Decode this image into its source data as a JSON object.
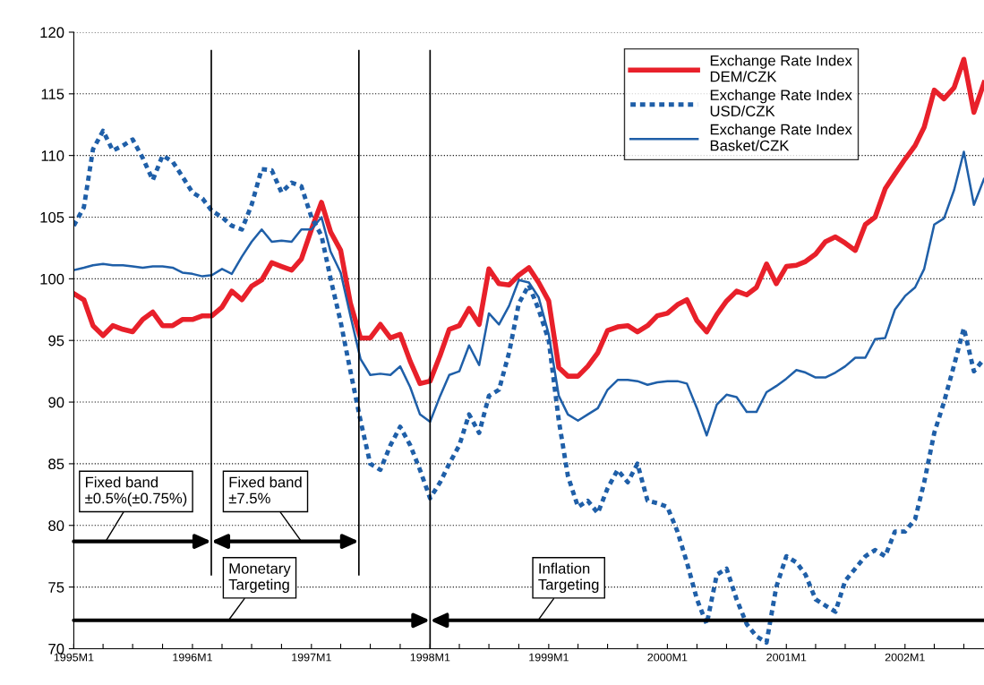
{
  "chart_data": {
    "type": "line",
    "x": [
      "1995-01",
      "1995-02",
      "1995-03",
      "1995-04",
      "1995-05",
      "1995-06",
      "1995-07",
      "1995-08",
      "1995-09",
      "1995-10",
      "1995-11",
      "1995-12",
      "1996-01",
      "1996-02",
      "1996-03",
      "1996-04",
      "1996-05",
      "1996-06",
      "1996-07",
      "1996-08",
      "1996-09",
      "1996-10",
      "1996-11",
      "1996-12",
      "1997-01",
      "1997-02",
      "1997-03",
      "1997-04",
      "1997-05",
      "1997-06",
      "1997-07",
      "1997-08",
      "1997-09",
      "1997-10",
      "1997-11",
      "1997-12",
      "1998-01",
      "1998-02",
      "1998-03",
      "1998-04",
      "1998-05",
      "1998-06",
      "1998-07",
      "1998-08",
      "1998-09",
      "1998-10",
      "1998-11",
      "1998-12",
      "1999-01",
      "1999-02",
      "1999-03",
      "1999-04",
      "1999-05",
      "1999-06",
      "1999-07",
      "1999-08",
      "1999-09",
      "1999-10",
      "1999-11",
      "1999-12",
      "2000-01",
      "2000-02",
      "2000-03",
      "2000-04",
      "2000-05",
      "2000-06",
      "2000-07",
      "2000-08",
      "2000-09",
      "2000-10",
      "2000-11",
      "2000-12",
      "2001-01",
      "2001-02",
      "2001-03",
      "2001-04",
      "2001-05",
      "2001-06",
      "2001-07",
      "2001-08",
      "2001-09",
      "2001-10",
      "2001-11",
      "2001-12",
      "2002-01",
      "2002-02",
      "2002-03",
      "2002-04",
      "2002-05",
      "2002-06",
      "2002-07",
      "2002-08",
      "2002-09"
    ],
    "series": [
      {
        "name": "Exchange Rate Index\nDEM/CZK",
        "color": "#e8202a",
        "line_style": "solid",
        "values": [
          98.8,
          98.3,
          96.2,
          95.4,
          96.2,
          95.9,
          95.7,
          96.7,
          97.3,
          96.2,
          96.2,
          96.7,
          96.7,
          97.0,
          97.0,
          97.7,
          99.0,
          98.3,
          99.4,
          99.9,
          101.3,
          101.0,
          100.7,
          101.6,
          104.0,
          106.2,
          103.8,
          102.3,
          98.0,
          95.2,
          95.2,
          96.3,
          95.2,
          95.5,
          93.3,
          91.5,
          91.7,
          93.8,
          95.9,
          96.2,
          97.6,
          96.3,
          100.8,
          99.6,
          99.5,
          100.3,
          100.9,
          99.7,
          98.2,
          92.8,
          92.1,
          92.1,
          92.9,
          94.0,
          95.8,
          96.1,
          96.2,
          95.7,
          96.2,
          97.0,
          97.2,
          97.9,
          98.3,
          96.6,
          95.7,
          97.1,
          98.2,
          99.0,
          98.7,
          99.3,
          101.2,
          99.6,
          101.0,
          101.1,
          101.4,
          102.0,
          103.0,
          103.4,
          102.9,
          102.3,
          104.4,
          105.0,
          107.3,
          108.5,
          109.7,
          110.8,
          112.3,
          115.3,
          114.6,
          115.5,
          117.8,
          113.5,
          115.9
        ]
      },
      {
        "name": "Exchange Rate Index\nUSD/CZK",
        "color": "#1f5fa8",
        "line_style": "dotted",
        "values": [
          104.3,
          105.8,
          110.5,
          112.0,
          110.4,
          110.8,
          111.3,
          109.8,
          108.0,
          110.0,
          109.5,
          108.3,
          107.0,
          106.5,
          105.5,
          105.0,
          104.3,
          104.0,
          106.0,
          108.9,
          108.8,
          107.0,
          107.8,
          107.5,
          105.0,
          103.5,
          100.0,
          96.5,
          92.5,
          88.5,
          85.0,
          84.5,
          86.5,
          88.0,
          86.5,
          84.5,
          82.2,
          83.5,
          85.0,
          86.5,
          89.0,
          87.5,
          90.5,
          91.0,
          94.0,
          98.0,
          99.5,
          97.5,
          95.0,
          88.5,
          84.0,
          81.5,
          82.0,
          81.0,
          83.0,
          84.5,
          83.5,
          85.0,
          82.0,
          81.8,
          81.5,
          79.5,
          77.0,
          74.0,
          72.0,
          76.0,
          76.5,
          74.0,
          72.0,
          71.0,
          70.5,
          75.0,
          77.5,
          77.0,
          76.0,
          74.0,
          73.5,
          73.0,
          75.5,
          76.5,
          77.5,
          78.0,
          77.5,
          79.5,
          79.5,
          80.5,
          83.5,
          87.5,
          90.0,
          93.0,
          96.0,
          92.5,
          93.5
        ]
      },
      {
        "name": "Exchange Rate Index\nBasket/CZK",
        "color": "#1f5fa8",
        "line_style": "solid",
        "values": [
          100.7,
          100.9,
          101.1,
          101.2,
          101.1,
          101.1,
          101.0,
          100.9,
          101.0,
          101.0,
          100.9,
          100.5,
          100.4,
          100.2,
          100.3,
          100.8,
          100.4,
          101.8,
          103.0,
          104.0,
          103.0,
          103.1,
          103.0,
          104.0,
          104.0,
          105.0,
          102.2,
          100.5,
          97.0,
          93.5,
          92.2,
          92.3,
          92.2,
          92.9,
          91.2,
          89.0,
          88.4,
          90.5,
          92.2,
          92.5,
          94.6,
          93.0,
          97.2,
          96.3,
          97.8,
          99.9,
          99.7,
          98.5,
          95.5,
          90.5,
          89.0,
          88.5,
          89.0,
          89.5,
          91.0,
          91.8,
          91.8,
          91.7,
          91.4,
          91.6,
          91.7,
          91.7,
          91.5,
          89.5,
          87.3,
          89.8,
          90.6,
          90.4,
          89.2,
          89.2,
          90.8,
          91.3,
          91.9,
          92.6,
          92.4,
          92.0,
          92.0,
          92.4,
          92.9,
          93.6,
          93.6,
          95.1,
          95.2,
          97.5,
          98.6,
          99.3,
          100.8,
          104.4,
          104.9,
          107.2,
          110.3,
          106.0,
          108.1
        ]
      }
    ],
    "xlim": [
      "1995-01",
      "2002-09"
    ],
    "xticks": [
      {
        "value": "1995-01",
        "label": "1995M1"
      },
      {
        "value": "1995-04",
        "label": null
      },
      {
        "value": "1995-07",
        "label": null
      },
      {
        "value": "1995-10",
        "label": null
      },
      {
        "value": "1996-01",
        "label": "1996M1"
      },
      {
        "value": "1996-04",
        "label": null
      },
      {
        "value": "1996-07",
        "label": null
      },
      {
        "value": "1996-10",
        "label": null
      },
      {
        "value": "1997-01",
        "label": "1997M1"
      },
      {
        "value": "1997-04",
        "label": null
      },
      {
        "value": "1997-07",
        "label": null
      },
      {
        "value": "1997-10",
        "label": null
      },
      {
        "value": "1998-01",
        "label": "1998M1"
      },
      {
        "value": "1998-04",
        "label": null
      },
      {
        "value": "1998-07",
        "label": null
      },
      {
        "value": "1998-10",
        "label": null
      },
      {
        "value": "1999-01",
        "label": "1999M1"
      },
      {
        "value": "1999-04",
        "label": null
      },
      {
        "value": "1999-07",
        "label": null
      },
      {
        "value": "1999-10",
        "label": null
      },
      {
        "value": "2000-01",
        "label": "2000M1"
      },
      {
        "value": "2000-04",
        "label": null
      },
      {
        "value": "2000-07",
        "label": null
      },
      {
        "value": "2000-10",
        "label": null
      },
      {
        "value": "2001-01",
        "label": "2001M1"
      },
      {
        "value": "2001-04",
        "label": null
      },
      {
        "value": "2001-07",
        "label": null
      },
      {
        "value": "2001-10",
        "label": null
      },
      {
        "value": "2002-01",
        "label": "2002M1"
      },
      {
        "value": "2002-04",
        "label": null
      },
      {
        "value": "2002-07",
        "label": null
      }
    ],
    "ylim": [
      70,
      120
    ],
    "yticks": [
      70,
      75,
      80,
      85,
      90,
      95,
      100,
      105,
      110,
      115,
      120
    ],
    "grid": "y",
    "legend": "top right",
    "ref_lines": [
      {
        "axis": "x",
        "value": "1996-02-28",
        "label": null,
        "color": "#000000"
      },
      {
        "axis": "x",
        "value": "1997-05-27",
        "label": null,
        "color": "#000000"
      },
      {
        "axis": "x",
        "value": "1998-01",
        "label": null,
        "color": "#000000"
      }
    ],
    "annotations": [
      "Fixed band\n±0.5%(±0.75%)",
      "Fixed band\n±7.5%",
      "Monetary\nTargeting",
      "Inflation\nTargeting"
    ]
  }
}
